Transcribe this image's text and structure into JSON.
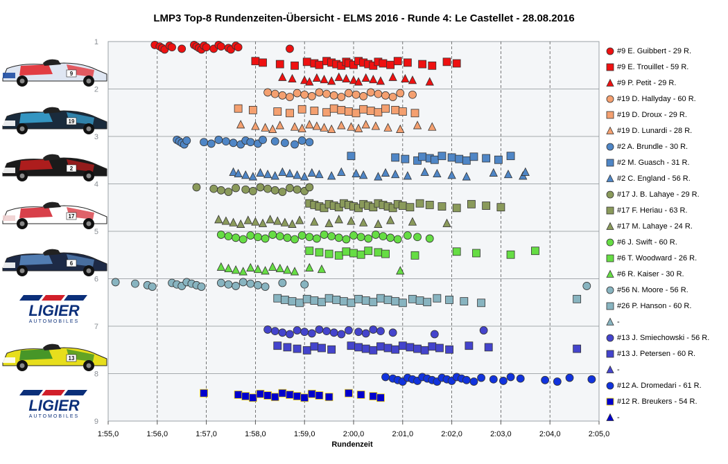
{
  "chart_data": {
    "type": "scatter",
    "title": "LMP3  Top-8 Rundenzeiten-Übersicht  - ELMS 2016  - Runde  4: Le Castellet  - 28.08.2016",
    "xlabel": "Rundenzeit",
    "ylabel": "",
    "x_ticks": [
      "1:55,0",
      "1:56,0",
      "1:57,0",
      "1:58,0",
      "1:59,0",
      "2:00,0",
      "2:01,0",
      "2:02,0",
      "2:03,0",
      "2:04,0",
      "2:05,0"
    ],
    "xlim": [
      115,
      125
    ],
    "ylim": [
      1,
      9
    ],
    "y_ticks": [
      "1",
      "2",
      "3",
      "4",
      "5",
      "6",
      "7",
      "8",
      "9"
    ],
    "x_unit": "seconds",
    "grid": true,
    "legend_position": "right",
    "series": [
      {
        "name": "#9 E. Guibbert - 29 R.",
        "marker": "circle",
        "color": "#ee1111",
        "row": 1,
        "x": [
          115.95,
          116.05,
          116.1,
          116.15,
          116.25,
          116.3,
          116.5,
          116.75,
          116.8,
          116.85,
          116.9,
          116.95,
          117.0,
          117.15,
          117.25,
          117.3,
          117.45,
          117.5,
          117.6,
          117.65,
          118.7
        ]
      },
      {
        "name": "#9 E. Trouillet - 59 R.",
        "marker": "square",
        "color": "#ee1111",
        "row": 1,
        "x": [
          118.0,
          118.15,
          118.5,
          118.8,
          119.05,
          119.2,
          119.3,
          119.45,
          119.55,
          119.65,
          119.75,
          119.85,
          119.9,
          120.0,
          120.1,
          120.2,
          120.3,
          120.4,
          120.5,
          120.6,
          120.75,
          120.9,
          121.1,
          121.4,
          121.6,
          121.9,
          122.1
        ]
      },
      {
        "name": "#9 P. Petit - 29 R.",
        "marker": "triangle",
        "color": "#ee1111",
        "row": 1,
        "x": [
          118.55,
          118.75,
          119.0,
          119.1,
          119.25,
          119.4,
          119.55,
          119.7,
          119.85,
          120.0,
          120.1,
          120.25,
          120.4,
          120.55,
          120.8,
          121.05,
          121.2,
          121.55
        ]
      },
      {
        "name": "#19 D. Hallyday - 60 R.",
        "marker": "circle",
        "color": "#f4a070",
        "row": 2,
        "x": [
          118.25,
          118.4,
          118.55,
          118.7,
          118.85,
          119.0,
          119.15,
          119.3,
          119.45,
          119.6,
          119.75,
          119.9,
          120.05,
          120.2,
          120.35,
          120.5,
          120.65,
          120.8,
          120.95,
          121.2
        ]
      },
      {
        "name": "#19 D. Droux - 29 R.",
        "marker": "square",
        "color": "#f4a070",
        "row": 2,
        "x": [
          117.65,
          117.95,
          118.45,
          118.7,
          118.95,
          119.2,
          119.45,
          119.6,
          119.75,
          119.9,
          120.05,
          120.2,
          120.35,
          120.5,
          120.65,
          120.85,
          121.0,
          121.25
        ]
      },
      {
        "name": "#19 D. Lunardi - 28 R.",
        "marker": "triangle",
        "color": "#f4a070",
        "row": 2,
        "x": [
          117.7,
          118.0,
          118.2,
          118.35,
          118.5,
          118.8,
          118.95,
          119.1,
          119.25,
          119.4,
          119.55,
          119.75,
          119.95,
          120.1,
          120.25,
          120.45,
          120.7,
          120.95,
          121.3,
          121.6
        ]
      },
      {
        "name": "#2 A. Brundle - 30 R.",
        "marker": "circle",
        "color": "#4f86c6",
        "row": 3,
        "x": [
          116.4,
          116.45,
          116.5,
          116.55,
          116.6,
          116.95,
          117.1,
          117.25,
          117.4,
          117.55,
          117.7,
          117.8,
          117.9,
          118.05,
          118.15,
          118.4,
          118.6,
          118.8,
          118.95,
          119.1
        ]
      },
      {
        "name": "#2 M. Guasch - 31 R.",
        "marker": "square",
        "color": "#4f86c6",
        "row": 3,
        "x": [
          119.95,
          120.85,
          121.05,
          121.3,
          121.4,
          121.55,
          121.65,
          121.8,
          122.0,
          122.15,
          122.3,
          122.45,
          122.7,
          122.95,
          123.2
        ]
      },
      {
        "name": "#2 C. England - 56 R.",
        "marker": "triangle",
        "color": "#4f86c6",
        "row": 3,
        "x": [
          117.55,
          117.65,
          117.8,
          117.95,
          118.1,
          118.25,
          118.4,
          118.55,
          118.7,
          118.85,
          119.0,
          119.15,
          119.3,
          119.55,
          119.75,
          120.05,
          120.2,
          120.5,
          120.65,
          120.85,
          121.1,
          121.45,
          121.7,
          122.0,
          122.3,
          122.85,
          123.15,
          123.45,
          123.5
        ]
      },
      {
        "name": "#17 J. B. Lahaye - 29 R.",
        "marker": "circle",
        "color": "#8a9a5b",
        "row": 4,
        "x": [
          116.8,
          117.15,
          117.3,
          117.45,
          117.6,
          117.8,
          117.95,
          118.1,
          118.25,
          118.4,
          118.55,
          118.7,
          118.85,
          119.0,
          119.1
        ]
      },
      {
        "name": "#17 F. Heriau - 63 R.",
        "marker": "square",
        "color": "#8a9a5b",
        "row": 4,
        "x": [
          119.1,
          119.2,
          119.3,
          119.4,
          119.5,
          119.6,
          119.7,
          119.8,
          119.9,
          120.0,
          120.1,
          120.2,
          120.3,
          120.4,
          120.5,
          120.6,
          120.7,
          120.8,
          120.9,
          121.0,
          121.15,
          121.35,
          121.55,
          121.8,
          122.1,
          122.4,
          122.7,
          123.0
        ]
      },
      {
        "name": "#17 M. Lahaye - 24 R.",
        "marker": "triangle",
        "color": "#8a9a5b",
        "row": 4,
        "x": [
          117.25,
          117.4,
          117.55,
          117.7,
          117.85,
          118.0,
          118.15,
          118.3,
          118.45,
          118.6,
          118.75,
          118.9,
          119.2,
          119.5,
          119.7,
          119.95,
          120.2,
          120.5,
          120.75,
          121.2,
          121.9
        ]
      },
      {
        "name": "#6 J. Swift - 60 R.",
        "marker": "circle",
        "color": "#66dd44",
        "row": 5,
        "x": [
          117.3,
          117.45,
          117.6,
          117.75,
          117.9,
          118.05,
          118.2,
          118.35,
          118.5,
          118.65,
          118.8,
          118.95,
          119.1,
          119.25,
          119.4,
          119.55,
          119.7,
          119.85,
          120.0,
          120.15,
          120.3,
          120.45,
          120.6,
          120.75,
          120.9,
          121.1,
          121.3,
          121.55
        ]
      },
      {
        "name": "#6 T. Woodward - 26 R.",
        "marker": "square",
        "color": "#66dd44",
        "row": 5,
        "x": [
          119.1,
          119.3,
          119.5,
          119.7,
          119.85,
          120.0,
          120.15,
          120.3,
          120.5,
          120.65,
          121.25,
          122.1,
          122.5,
          123.2,
          123.7
        ]
      },
      {
        "name": "#6 R. Kaiser - 30 R.",
        "marker": "triangle",
        "color": "#66dd44",
        "row": 5,
        "x": [
          117.3,
          117.45,
          117.6,
          117.75,
          117.9,
          118.05,
          118.2,
          118.35,
          118.5,
          118.65,
          118.8,
          119.1,
          119.35,
          120.95
        ]
      },
      {
        "name": "#56 N. Moore - 56 R.",
        "marker": "circle",
        "color": "#88b4c0",
        "row": 6,
        "x": [
          115.15,
          115.55,
          115.8,
          115.9,
          116.3,
          116.4,
          116.5,
          116.6,
          116.7,
          116.8,
          116.9,
          117.3,
          117.45,
          117.6,
          117.75,
          117.9,
          118.05,
          118.2,
          118.55,
          119.0,
          124.75
        ]
      },
      {
        "name": "#26 P. Hanson - 60 R.",
        "marker": "square",
        "color": "#88b4c0",
        "row": 6,
        "x": [
          118.45,
          118.6,
          118.75,
          118.9,
          119.05,
          119.2,
          119.35,
          119.5,
          119.65,
          119.8,
          119.95,
          120.1,
          120.25,
          120.4,
          120.55,
          120.7,
          120.85,
          121.0,
          121.2,
          121.35,
          121.5,
          121.7,
          121.95,
          122.25,
          122.6,
          124.55
        ]
      },
      {
        "name": "-",
        "marker": "triangle",
        "color": "#88b4c0",
        "row": 6,
        "x": []
      },
      {
        "name": "#13 J. Smiechowski - 56 R.",
        "marker": "circle",
        "color": "#4444cc",
        "row": 7,
        "x": [
          118.25,
          118.4,
          118.55,
          118.7,
          118.85,
          119.0,
          119.15,
          119.3,
          119.45,
          119.6,
          119.75,
          119.9,
          120.1,
          120.25,
          120.4,
          120.55,
          120.8,
          121.65,
          122.65
        ]
      },
      {
        "name": "#13 J. Petersen - 60 R.",
        "marker": "square",
        "color": "#4444cc",
        "row": 7,
        "x": [
          118.45,
          118.65,
          118.85,
          119.05,
          119.2,
          119.35,
          119.55,
          119.95,
          120.1,
          120.25,
          120.4,
          120.55,
          120.7,
          120.85,
          121.0,
          121.15,
          121.3,
          121.45,
          121.6,
          121.75,
          121.95,
          122.35,
          122.75,
          124.55
        ]
      },
      {
        "name": "-",
        "marker": "triangle",
        "color": "#4444cc",
        "row": 7,
        "x": []
      },
      {
        "name": "#12 A. Dromedari - 61 R.",
        "marker": "circle",
        "color": "#1133dd",
        "row": 8,
        "x": [
          120.65,
          120.8,
          120.9,
          121.0,
          121.1,
          121.2,
          121.3,
          121.4,
          121.5,
          121.6,
          121.7,
          121.8,
          121.9,
          122.0,
          122.1,
          122.2,
          122.3,
          122.45,
          122.6,
          122.85,
          123.05,
          123.2,
          123.4,
          123.9,
          124.15,
          124.4,
          124.85
        ]
      },
      {
        "name": "#12 R. Breukers - 54 R.",
        "marker": "square",
        "color": "#0000cc",
        "row": 8,
        "x": [
          116.95,
          117.65,
          117.8,
          117.95,
          118.1,
          118.25,
          118.4,
          118.55,
          118.7,
          118.85,
          119.0,
          119.15,
          119.3,
          119.5,
          119.9,
          120.15,
          120.4,
          120.55
        ]
      },
      {
        "name": "-",
        "marker": "triangle",
        "color": "#0000cc",
        "row": 8,
        "x": []
      }
    ],
    "car_tiles": [
      {
        "kind": "car",
        "number": "9",
        "colors": [
          "#dfe6f2",
          "#e31e24",
          "#1f4ea3"
        ]
      },
      {
        "kind": "car",
        "number": "19",
        "colors": [
          "#1a2b3c",
          "#3aa8d8",
          "#ffffff"
        ]
      },
      {
        "kind": "car",
        "number": "2",
        "colors": [
          "#1a1a1a",
          "#c81e1e",
          "#ffffff"
        ]
      },
      {
        "kind": "car",
        "number": "17",
        "colors": [
          "#ffffff",
          "#d11f2a",
          "#f0d0d0"
        ]
      },
      {
        "kind": "car",
        "number": "6",
        "colors": [
          "#1d2a46",
          "#5b8bc4",
          "#ffffff"
        ]
      },
      {
        "kind": "logo",
        "text": "LIGIER",
        "sub": "AUTOMOBILES",
        "colors": [
          "#0b2f7a",
          "#d11f2a"
        ]
      },
      {
        "kind": "car",
        "number": "13",
        "colors": [
          "#e7de1c",
          "#2a8a2a",
          "#ffffff"
        ]
      },
      {
        "kind": "logo",
        "text": "LIGIER",
        "sub": "AUTOMOBILES",
        "colors": [
          "#0b2f7a",
          "#d11f2a"
        ]
      }
    ]
  }
}
